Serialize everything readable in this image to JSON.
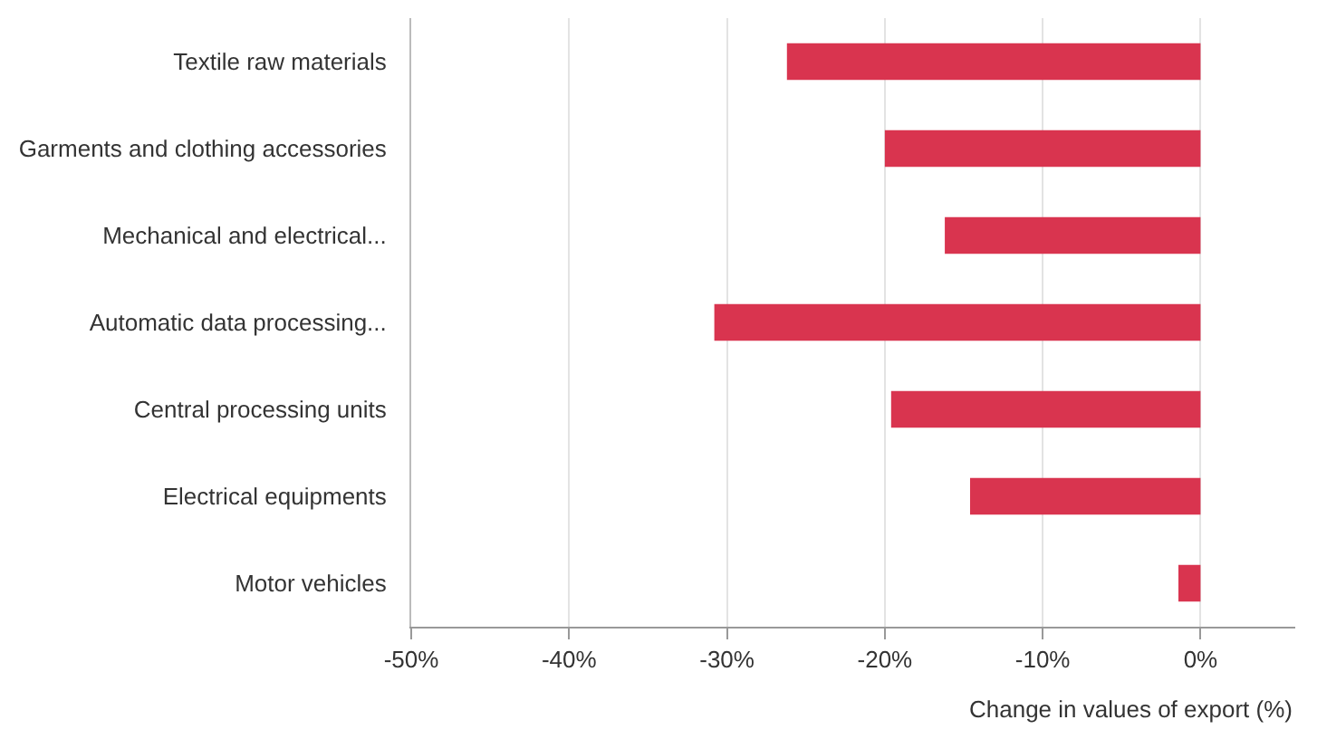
{
  "chart_data": {
    "type": "bar",
    "orientation": "horizontal",
    "xlabel": "Change in values of export (%)",
    "categories": [
      "Textile raw materials",
      "Garments and clothing accessories",
      "Mechanical and electrical...",
      "Automatic data processing...",
      "Central processing units",
      "Electrical equipments",
      "Motor vehicles"
    ],
    "values": [
      -26.2,
      -20.0,
      -16.2,
      -30.8,
      -19.6,
      -14.6,
      -1.4
    ],
    "color": "#d9344f",
    "xlim": [
      -50,
      6
    ],
    "xticks": [
      {
        "value": -50,
        "label": "-50%"
      },
      {
        "value": -40,
        "label": "-40%"
      },
      {
        "value": -30,
        "label": "-30%"
      },
      {
        "value": -20,
        "label": "-20%"
      },
      {
        "value": -10,
        "label": "-10%"
      },
      {
        "value": 0,
        "label": "0%"
      }
    ],
    "grid": "x"
  }
}
